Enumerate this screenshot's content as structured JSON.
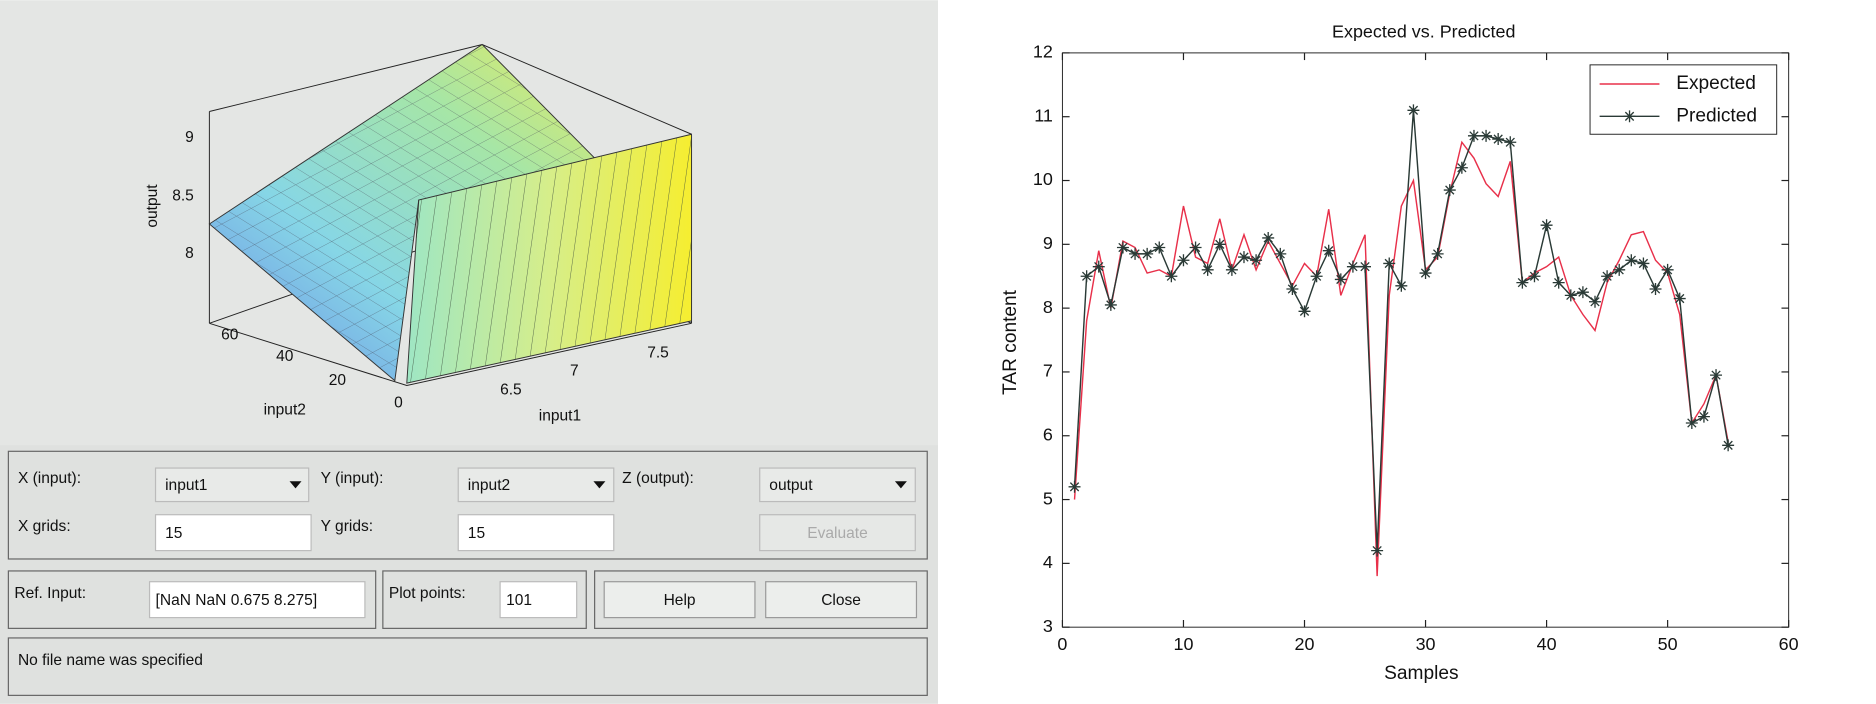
{
  "surface_viewer": {
    "plot": {
      "z_label": "output",
      "x_label": "input1",
      "y_label": "input2",
      "z_ticks": [
        "8",
        "8.5",
        "9"
      ],
      "x_ticks": [
        "6.5",
        "7",
        "7.5"
      ],
      "y_ticks": [
        "0",
        "20",
        "40",
        "60"
      ]
    },
    "controls": {
      "x_input_label": "X (input):",
      "x_input": "input1",
      "y_input_label": "Y (input):",
      "y_input": "input2",
      "z_output_label": "Z (output):",
      "z_output": "output",
      "x_grids_label": "X grids:",
      "x_grids": "15",
      "y_grids_label": "Y grids:",
      "y_grids": "15",
      "evaluate": "Evaluate",
      "ref_input_label": "Ref. Input:",
      "ref_input": "[NaN NaN 0.675 8.275]",
      "plot_points_label": "Plot points:",
      "plot_points": "101",
      "help": "Help",
      "close": "Close"
    },
    "status": "No file name was specified"
  },
  "chart_data": {
    "type": "line",
    "title": "Expected vs. Predicted",
    "x_label": "Samples",
    "y_label": "TAR content",
    "x": [
      1,
      2,
      3,
      4,
      5,
      6,
      7,
      8,
      9,
      10,
      11,
      12,
      13,
      14,
      15,
      16,
      17,
      18,
      19,
      20,
      21,
      22,
      23,
      24,
      25,
      26,
      27,
      28,
      29,
      30,
      31,
      32,
      33,
      34,
      35,
      36,
      37,
      38,
      39,
      40,
      41,
      42,
      43,
      44,
      45,
      46,
      47,
      48,
      49,
      50,
      51,
      52,
      53,
      54,
      55
    ],
    "series": [
      {
        "name": "Expected",
        "color": "#e8304a",
        "marker": "none",
        "values": [
          5.0,
          7.8,
          8.9,
          8.0,
          9.05,
          8.95,
          8.55,
          8.6,
          8.5,
          9.6,
          8.8,
          8.7,
          9.4,
          8.6,
          9.15,
          8.6,
          9.05,
          8.7,
          8.35,
          8.7,
          8.5,
          9.55,
          8.2,
          8.7,
          9.15,
          3.8,
          8.2,
          9.6,
          10.0,
          8.6,
          8.8,
          9.8,
          10.6,
          10.35,
          9.95,
          9.75,
          10.3,
          8.4,
          8.55,
          8.65,
          8.8,
          8.2,
          7.9,
          7.65,
          8.4,
          8.75,
          9.15,
          9.2,
          8.75,
          8.55,
          7.9,
          6.2,
          6.5,
          6.95,
          5.9
        ]
      },
      {
        "name": "Predicted",
        "color": "#2a3a36",
        "marker": "star",
        "values": [
          5.2,
          8.5,
          8.65,
          8.05,
          8.95,
          8.85,
          8.85,
          8.95,
          8.5,
          8.75,
          8.95,
          8.6,
          9.0,
          8.6,
          8.8,
          8.75,
          9.1,
          8.85,
          8.3,
          7.95,
          8.5,
          8.9,
          8.45,
          8.65,
          8.65,
          4.2,
          8.7,
          8.35,
          11.1,
          8.55,
          8.85,
          9.85,
          10.2,
          10.7,
          10.7,
          10.65,
          10.6,
          8.4,
          8.5,
          9.3,
          8.4,
          8.2,
          8.25,
          8.1,
          8.5,
          8.6,
          8.75,
          8.7,
          8.3,
          8.6,
          8.15,
          6.2,
          6.3,
          6.95,
          5.85
        ]
      }
    ],
    "xlim": [
      0,
      60
    ],
    "xticks": [
      0,
      10,
      20,
      30,
      40,
      50,
      60
    ],
    "ylim": [
      3,
      12
    ],
    "yticks": [
      3,
      4,
      5,
      6,
      7,
      8,
      9,
      10,
      11,
      12
    ],
    "legend": "northeast",
    "grid": false
  }
}
